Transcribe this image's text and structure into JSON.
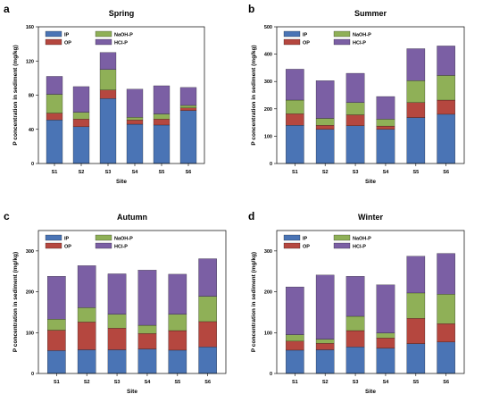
{
  "chart_data": [
    {
      "type": "bar",
      "stacked": true,
      "panel": "a",
      "title": "Spring",
      "xlabel": "Site",
      "ylabel": "P concentration in sediment (mg/kg)",
      "ylim": [
        0,
        160
      ],
      "yticks": [
        0,
        40,
        80,
        120,
        160
      ],
      "categories": [
        "S1",
        "S2",
        "S3",
        "S4",
        "S5",
        "S6"
      ],
      "series": [
        {
          "name": "IP",
          "color": "#4a74b5",
          "values": [
            51,
            43,
            76,
            46,
            45,
            62
          ]
        },
        {
          "name": "OP",
          "color": "#b5473f",
          "values": [
            8,
            9,
            10,
            5,
            7,
            3
          ]
        },
        {
          "name": "NaOH-P",
          "color": "#8fb057",
          "values": [
            22,
            8,
            24,
            3,
            6,
            3
          ]
        },
        {
          "name": "HCl-P",
          "color": "#7b5fa4",
          "values": [
            21,
            30,
            20,
            33,
            33,
            21
          ]
        }
      ],
      "legend": "top-left"
    },
    {
      "type": "bar",
      "stacked": true,
      "panel": "b",
      "title": "Summer",
      "xlabel": "Site",
      "ylabel": "P concentration in sediment (mg/kg)",
      "ylim": [
        0,
        500
      ],
      "yticks": [
        0,
        100,
        200,
        300,
        400,
        500
      ],
      "categories": [
        "S1",
        "S2",
        "S3",
        "S4",
        "S5",
        "S6"
      ],
      "series": [
        {
          "name": "IP",
          "color": "#4a74b5",
          "values": [
            140,
            125,
            138,
            125,
            168,
            180
          ]
        },
        {
          "name": "OP",
          "color": "#b5473f",
          "values": [
            42,
            15,
            40,
            12,
            55,
            52
          ]
        },
        {
          "name": "NaOH-P",
          "color": "#8fb057",
          "values": [
            50,
            25,
            45,
            25,
            80,
            90
          ]
        },
        {
          "name": "HCl-P",
          "color": "#7b5fa4",
          "values": [
            113,
            138,
            107,
            83,
            117,
            108
          ]
        }
      ],
      "legend": "top-left"
    },
    {
      "type": "bar",
      "stacked": true,
      "panel": "c",
      "title": "Autumn",
      "xlabel": "Site",
      "ylabel": "P concentration in sediment (mg/kg)",
      "ylim": [
        0,
        350
      ],
      "yticks": [
        0,
        100,
        200,
        300
      ],
      "categories": [
        "S1",
        "S2",
        "S3",
        "S4",
        "S5",
        "S6"
      ],
      "series": [
        {
          "name": "IP",
          "color": "#4a74b5",
          "values": [
            56,
            58,
            58,
            60,
            57,
            65
          ]
        },
        {
          "name": "OP",
          "color": "#b5473f",
          "values": [
            50,
            68,
            53,
            38,
            48,
            62
          ]
        },
        {
          "name": "NaOH-P",
          "color": "#8fb057",
          "values": [
            27,
            35,
            34,
            20,
            40,
            62
          ]
        },
        {
          "name": "HCl-P",
          "color": "#7b5fa4",
          "values": [
            105,
            103,
            99,
            135,
            98,
            92
          ]
        }
      ],
      "legend": "top-left"
    },
    {
      "type": "bar",
      "stacked": true,
      "panel": "d",
      "title": "Winter",
      "xlabel": "Site",
      "ylabel": "P concentration in sediment (mg/kg)",
      "ylim": [
        0,
        350
      ],
      "yticks": [
        0,
        100,
        200,
        300
      ],
      "categories": [
        "S1",
        "S2",
        "S3",
        "S4",
        "S5",
        "S6"
      ],
      "series": [
        {
          "name": "IP",
          "color": "#4a74b5",
          "values": [
            57,
            58,
            65,
            62,
            73,
            77
          ]
        },
        {
          "name": "OP",
          "color": "#b5473f",
          "values": [
            22,
            16,
            40,
            25,
            62,
            45
          ]
        },
        {
          "name": "NaOH-P",
          "color": "#8fb057",
          "values": [
            16,
            10,
            35,
            12,
            62,
            72
          ]
        },
        {
          "name": "HCl-P",
          "color": "#7b5fa4",
          "values": [
            117,
            157,
            98,
            118,
            90,
            100
          ]
        }
      ],
      "legend": "top-left"
    }
  ]
}
